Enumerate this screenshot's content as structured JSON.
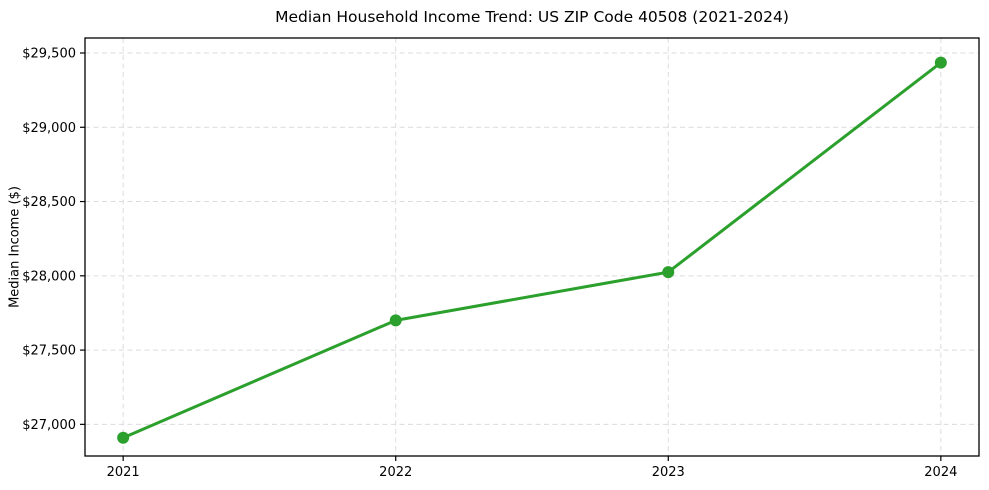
{
  "chart_data": {
    "type": "line",
    "title": "Median Household Income Trend: US ZIP Code 40508 (2021-2024)",
    "xlabel": "",
    "ylabel": "Median Income ($)",
    "x": [
      2021,
      2022,
      2023,
      2024
    ],
    "x_tick_labels": [
      "2021",
      "2022",
      "2023",
      "2024"
    ],
    "values": [
      26910,
      27700,
      28025,
      29435
    ],
    "y_ticks": [
      27000,
      27500,
      28000,
      28500,
      29000,
      29500
    ],
    "y_tick_labels": [
      "$27,000",
      "$27,500",
      "$28,000",
      "$28,500",
      "$29,000",
      "$29,500"
    ],
    "xlim": [
      2020.86,
      2024.14
    ],
    "ylim": [
      26787,
      29601
    ],
    "grid": true,
    "grid_style": "dashed",
    "legend_position": "none",
    "line_color": "#2ca02c",
    "grid_color": "#dcdcdc",
    "axis_color": "#000000",
    "marker": "circle"
  }
}
